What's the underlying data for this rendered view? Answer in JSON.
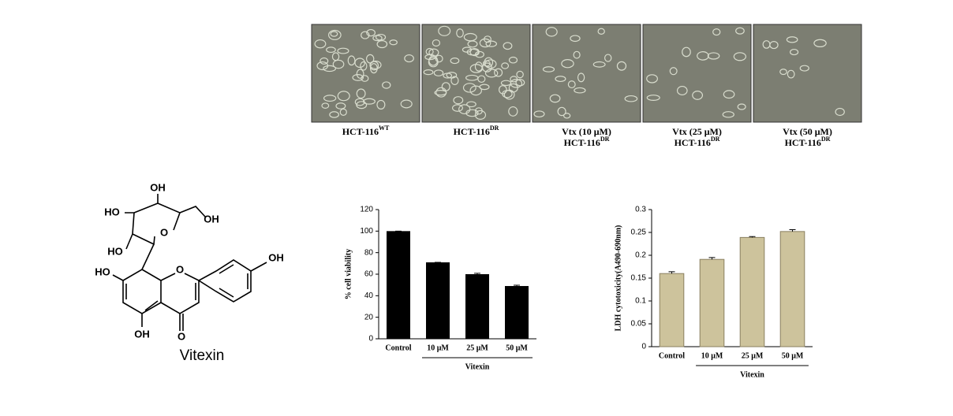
{
  "micrographs": {
    "labels": [
      {
        "lines": [
          {
            "base": "HCT-116",
            "sup": "WT"
          }
        ]
      },
      {
        "lines": [
          {
            "base": "HCT-116",
            "sup": "DR"
          }
        ]
      },
      {
        "lines": [
          {
            "base": "Vtx (10 μM)"
          },
          {
            "base": "HCT-116",
            "sup": "DR"
          }
        ]
      },
      {
        "lines": [
          {
            "base": "Vtx (25 μM)"
          },
          {
            "base": "HCT-116",
            "sup": "DR"
          }
        ]
      },
      {
        "lines": [
          {
            "base": "Vtx (50 μM)"
          },
          {
            "base": "HCT-116",
            "sup": "DR"
          }
        ]
      }
    ]
  },
  "structure": {
    "name": "Vitexin",
    "atoms": [
      "OH",
      "HO",
      "OH",
      "HO",
      "O",
      "HO",
      "OH",
      "O",
      "O",
      "OH"
    ]
  },
  "chart_data": [
    {
      "type": "bar",
      "y_label": "% cell viability",
      "categories": [
        "Control",
        "10 μM",
        "25 μM",
        "50 μM"
      ],
      "values": [
        100,
        71,
        60,
        49
      ],
      "errors": [
        0,
        0,
        0.8,
        0.8
      ],
      "group_label": "Vitexin",
      "color": "#000000",
      "ylim": [
        0,
        120
      ],
      "yticks": [
        0,
        20,
        40,
        60,
        80,
        100,
        120
      ]
    },
    {
      "type": "bar",
      "y_label": "LDH cytotoxicity(A490-690nm)",
      "categories": [
        "Control",
        "10 μM",
        "25 μM",
        "50 μM"
      ],
      "values": [
        0.16,
        0.191,
        0.239,
        0.252
      ],
      "errors": [
        0.004,
        0.004,
        0.002,
        0.004
      ],
      "group_label": "Vitexin",
      "color": "#cdc39c",
      "ylim": [
        0,
        0.3
      ],
      "yticks": [
        0,
        0.05,
        0.1,
        0.15,
        0.2,
        0.25,
        0.3
      ]
    }
  ]
}
